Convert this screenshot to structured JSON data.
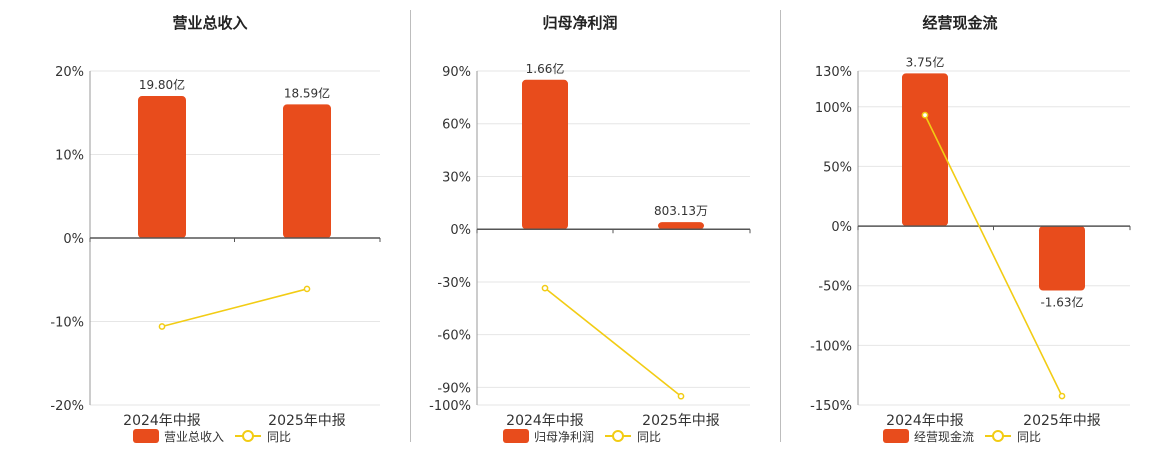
{
  "chart_data": [
    {
      "type": "bar",
      "title": "营业总收入",
      "categories": [
        "2024年中报",
        "2025年中报"
      ],
      "ylim": [
        -20,
        20
      ],
      "yticks": [
        "20%",
        "10%",
        "0%",
        "-10%",
        "-20%"
      ],
      "ytick_values": [
        20,
        10,
        0,
        -10,
        -20
      ],
      "grid": true,
      "legend_placement": "bottom",
      "bar_color": "#e84c1c",
      "line_color": "#f2cc14",
      "series": [
        {
          "name": "营业总收入",
          "kind": "bar",
          "values": [
            17,
            16
          ],
          "labels": [
            "19.80亿",
            "18.59亿"
          ]
        },
        {
          "name": "同比",
          "kind": "line",
          "values": [
            -10.6,
            -6.1
          ]
        }
      ]
    },
    {
      "type": "bar",
      "title": "归母净利润",
      "categories": [
        "2024年中报",
        "2025年中报"
      ],
      "ylim": [
        -100,
        90
      ],
      "yticks": [
        "90%",
        "60%",
        "30%",
        "0%",
        "-30%",
        "-60%",
        "-90%",
        "-100%"
      ],
      "ytick_values": [
        90,
        60,
        30,
        0,
        -30,
        -60,
        -90,
        -100
      ],
      "grid": true,
      "legend_placement": "bottom",
      "bar_color": "#e84c1c",
      "line_color": "#f2cc14",
      "series": [
        {
          "name": "归母净利润",
          "kind": "bar",
          "values": [
            85,
            4
          ],
          "labels": [
            "1.66亿",
            "803.13万"
          ]
        },
        {
          "name": "同比",
          "kind": "line",
          "values": [
            -33.5,
            -95
          ]
        }
      ]
    },
    {
      "type": "bar",
      "title": "经营现金流",
      "categories": [
        "2024年中报",
        "2025年中报"
      ],
      "ylim": [
        -150,
        130
      ],
      "yticks": [
        "130%",
        "100%",
        "50%",
        "0%",
        "-50%",
        "-100%",
        "-150%"
      ],
      "ytick_values": [
        130,
        100,
        50,
        0,
        -50,
        -100,
        -150
      ],
      "grid": true,
      "legend_placement": "bottom",
      "bar_color": "#e84c1c",
      "line_color": "#f2cc14",
      "series": [
        {
          "name": "经营现金流",
          "kind": "bar",
          "values": [
            128,
            -54
          ],
          "labels": [
            "3.75亿",
            "-1.63亿"
          ]
        },
        {
          "name": "同比",
          "kind": "line",
          "values": [
            93,
            -142.5
          ]
        }
      ]
    }
  ]
}
